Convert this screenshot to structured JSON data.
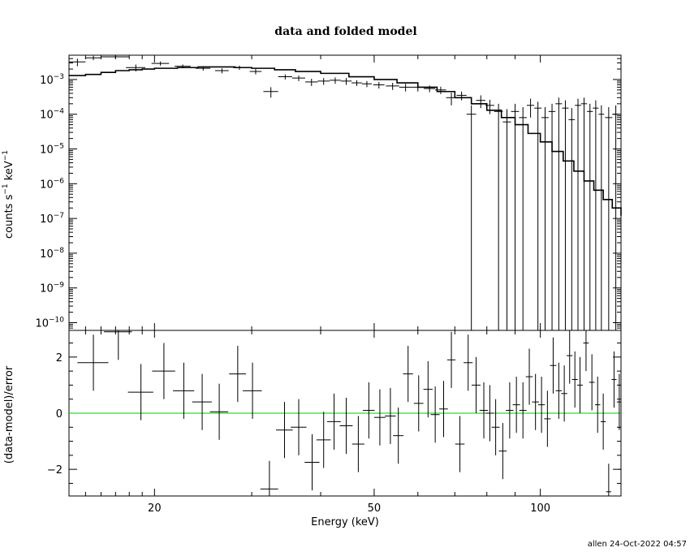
{
  "title": "data and folded model",
  "stamp": "allen 24-Oct-2022 04:57",
  "chart_data": [
    {
      "type": "scatter",
      "panel": "top",
      "title": "data and folded model",
      "xlabel": "Energy (keV)",
      "ylabel": "counts s^-1 keV^-1",
      "ylabel_parts": [
        "counts s",
        "−1",
        " keV",
        "−1"
      ],
      "xscale": "log",
      "yscale": "log",
      "xlim": [
        14,
        140
      ],
      "ylim": [
        6e-11,
        0.005
      ],
      "y_ticks": [
        {
          "value": 0.001,
          "base": "10",
          "exp": "−3"
        },
        {
          "value": 0.0001,
          "base": "10",
          "exp": "−4"
        },
        {
          "value": 1e-05,
          "base": "10",
          "exp": "−5"
        },
        {
          "value": 1e-06,
          "base": "10",
          "exp": "−6"
        },
        {
          "value": 1e-07,
          "base": "10",
          "exp": "−7"
        },
        {
          "value": 1e-08,
          "base": "10",
          "exp": "−8"
        },
        {
          "value": 1e-09,
          "base": "10",
          "exp": "−9"
        },
        {
          "value": 1e-10,
          "base": "10",
          "exp": "−10"
        }
      ],
      "grid": false,
      "series": [
        {
          "role": "data",
          "points": [
            [
              14.5,
              0.0032
            ],
            [
              15.5,
              0.0042
            ],
            [
              17.0,
              0.0045
            ],
            [
              18.5,
              0.0022
            ],
            [
              20.5,
              0.0029
            ],
            [
              22.5,
              0.0024
            ],
            [
              24.5,
              0.0021
            ],
            [
              26.5,
              0.0018
            ],
            [
              28.5,
              0.0022
            ],
            [
              30.5,
              0.0017
            ],
            [
              32.5,
              0.00045
            ],
            [
              34.5,
              0.0012
            ],
            [
              36.5,
              0.0011
            ],
            [
              38.5,
              0.00085
            ],
            [
              40.5,
              0.0009
            ],
            [
              42.5,
              0.00095
            ],
            [
              44.5,
              0.0009
            ],
            [
              46.5,
              0.0008
            ],
            [
              48.5,
              0.00075
            ],
            [
              51,
              0.0007
            ],
            [
              54,
              0.00065
            ],
            [
              57,
              0.0006
            ],
            [
              60,
              0.0006
            ],
            [
              63,
              0.00055
            ],
            [
              66,
              0.0005
            ],
            [
              69,
              0.0003
            ],
            [
              72,
              0.00035
            ],
            [
              75,
              0.0001
            ],
            [
              78,
              0.00025
            ],
            [
              81,
              0.00018
            ],
            [
              84,
              0.00012
            ],
            [
              87,
              6e-05
            ],
            [
              90,
              0.00012
            ],
            [
              93,
              8e-05
            ],
            [
              96,
              0.00018
            ],
            [
              99,
              0.00015
            ],
            [
              102,
              8e-05
            ],
            [
              105,
              0.00012
            ],
            [
              108,
              0.0002
            ],
            [
              111,
              0.00015
            ],
            [
              114,
              7e-05
            ],
            [
              117,
              0.00018
            ],
            [
              120,
              0.0002
            ],
            [
              123,
              0.00012
            ],
            [
              126,
              0.00015
            ],
            [
              129,
              0.0001
            ],
            [
              133,
              8e-05
            ],
            [
              137,
              0.0001
            ]
          ],
          "xerr_half": [
            0.5,
            0.5,
            1.0,
            0.75,
            0.75,
            0.75,
            0.75,
            0.75,
            0.75,
            0.75,
            1.0,
            1.0,
            1.0,
            1.0,
            1.0,
            1.0,
            1.0,
            1.0,
            1.0,
            1.2,
            1.5,
            1.5,
            1.5,
            1.5,
            1.5,
            1.5,
            1.5,
            1.5,
            1.5,
            1.5,
            1.5,
            1.5,
            1.5,
            1.5,
            1.5,
            1.5,
            1.5,
            1.5,
            1.5,
            1.5,
            1.5,
            1.5,
            1.5,
            1.5,
            1.5,
            1.5,
            2.0,
            2.0
          ],
          "yerr_low": [
            0.0008,
            0.0006,
            0.0005,
            0.0005,
            0.0004,
            0.0003,
            0.0003,
            0.0003,
            0.0003,
            0.0003,
            0.00015,
            0.0002,
            0.0002,
            0.0002,
            0.0002,
            0.0002,
            0.0002,
            0.00015,
            0.00015,
            0.00015,
            0.00015,
            0.00015,
            0.00015,
            0.00012,
            0.00012,
            0.00012,
            0.0001,
            "floor",
            0.0001,
            8e-05,
            "floor",
            "floor",
            "floor",
            "floor",
            0.0001,
            "floor",
            "floor",
            "floor",
            "floor",
            "floor",
            "floor",
            "floor",
            "floor",
            "floor",
            "floor",
            "floor",
            "floor",
            "floor"
          ],
          "yerr_high": [
            0.0008,
            0.0006,
            0.0005,
            0.0005,
            0.0004,
            0.0003,
            0.0003,
            0.0003,
            0.0003,
            0.0003,
            0.00015,
            0.0002,
            0.0002,
            0.0002,
            0.0002,
            0.0002,
            0.0002,
            0.00015,
            0.00015,
            0.00015,
            0.00015,
            0.00015,
            0.00015,
            0.00012,
            0.00012,
            0.00012,
            0.0001,
            8e-05,
            0.0001,
            8e-05,
            8e-05,
            8e-05,
            8e-05,
            8e-05,
            0.0001,
            8e-05,
            8e-05,
            8e-05,
            0.0001,
            0.0001,
            8e-05,
            0.0001,
            0.0001,
            8e-05,
            0.0001,
            8e-05,
            8e-05,
            8e-05
          ]
        },
        {
          "role": "model",
          "style": "step",
          "points": [
            [
              14,
              0.0013
            ],
            [
              15,
              0.0014
            ],
            [
              16,
              0.0016
            ],
            [
              17,
              0.0018
            ],
            [
              18,
              0.0019
            ],
            [
              19,
              0.002
            ],
            [
              20,
              0.0021
            ],
            [
              22,
              0.0022
            ],
            [
              24,
              0.0023
            ],
            [
              26,
              0.0023
            ],
            [
              28,
              0.0022
            ],
            [
              30,
              0.0021
            ],
            [
              33,
              0.0019
            ],
            [
              36,
              0.0017
            ],
            [
              40,
              0.0015
            ],
            [
              45,
              0.0012
            ],
            [
              50,
              0.001
            ],
            [
              55,
              0.0008
            ],
            [
              60,
              0.0006
            ],
            [
              65,
              0.00045
            ],
            [
              70,
              0.0003
            ],
            [
              75,
              0.0002
            ],
            [
              80,
              0.00013
            ],
            [
              85,
              8e-05
            ],
            [
              90,
              5e-05
            ],
            [
              95,
              2.8e-05
            ],
            [
              100,
              1.6e-05
            ],
            [
              105,
              8.5e-06
            ],
            [
              110,
              4.5e-06
            ],
            [
              115,
              2.3e-06
            ],
            [
              120,
              1.2e-06
            ],
            [
              125,
              6.5e-07
            ],
            [
              130,
              3.5e-07
            ],
            [
              135,
              2e-07
            ],
            [
              140,
              1.2e-07
            ]
          ]
        }
      ]
    },
    {
      "type": "scatter",
      "panel": "bottom",
      "xlabel": "Energy (keV)",
      "ylabel": "(data-model)/error",
      "xscale": "log",
      "xlim": [
        14,
        140
      ],
      "ylim": [
        -2.95,
        2.95
      ],
      "y_ticks": [
        {
          "value": 2,
          "label": "2"
        },
        {
          "value": 0,
          "label": "0"
        },
        {
          "value": -2,
          "label": "−2"
        }
      ],
      "x_ticks": [
        {
          "value": 20,
          "label": "20"
        },
        {
          "value": 50,
          "label": "50"
        },
        {
          "value": 100,
          "label": "100"
        }
      ],
      "reference_line": {
        "y": 0,
        "color": "#00cc00"
      },
      "grid": false,
      "series": [
        {
          "role": "residuals",
          "points": [
            [
              15.5,
              1.8
            ],
            [
              17.2,
              2.9
            ],
            [
              18.9,
              0.75
            ],
            [
              20.8,
              1.5
            ],
            [
              22.6,
              0.8
            ],
            [
              24.4,
              0.4
            ],
            [
              26.2,
              0.05
            ],
            [
              28.3,
              1.4
            ],
            [
              30.1,
              0.8
            ],
            [
              32.3,
              -2.7
            ],
            [
              34.4,
              -0.6
            ],
            [
              36.5,
              -0.5
            ],
            [
              38.6,
              -1.75
            ],
            [
              40.5,
              -0.95
            ],
            [
              42.3,
              -0.3
            ],
            [
              44.5,
              -0.45
            ],
            [
              46.8,
              -1.1
            ],
            [
              48.9,
              0.1
            ],
            [
              51.2,
              -0.15
            ],
            [
              53.5,
              -0.1
            ],
            [
              55.3,
              -0.8
            ],
            [
              57.6,
              1.4
            ],
            [
              60.2,
              0.35
            ],
            [
              62.6,
              0.85
            ],
            [
              64.5,
              -0.05
            ],
            [
              66.8,
              0.15
            ],
            [
              69,
              1.9
            ],
            [
              71.5,
              -1.1
            ],
            [
              74,
              1.8
            ],
            [
              76.5,
              1.0
            ],
            [
              79,
              0.1
            ],
            [
              81,
              0.0
            ],
            [
              83,
              -0.5
            ],
            [
              85.5,
              -1.35
            ],
            [
              88,
              0.1
            ],
            [
              90.5,
              0.3
            ],
            [
              93,
              0.1
            ],
            [
              95.5,
              1.3
            ],
            [
              98,
              0.4
            ],
            [
              100.5,
              0.3
            ],
            [
              103,
              -0.2
            ],
            [
              105.5,
              1.7
            ],
            [
              108,
              0.8
            ],
            [
              110.5,
              0.7
            ],
            [
              113,
              2.05
            ],
            [
              115.5,
              1.2
            ],
            [
              118,
              1.0
            ],
            [
              121,
              2.5
            ],
            [
              124,
              1.1
            ],
            [
              127,
              0.3
            ],
            [
              130,
              -0.3
            ],
            [
              133,
              -2.8
            ],
            [
              136,
              1.2
            ],
            [
              139,
              0.4
            ],
            [
              140,
              -2.0
            ]
          ],
          "yerr": [
            1.0,
            1.0,
            1.0,
            1.0,
            1.0,
            1.0,
            1.0,
            1.0,
            1.0,
            1.0,
            1.0,
            1.0,
            1.0,
            1.0,
            1.0,
            1.0,
            1.0,
            1.0,
            1.0,
            1.0,
            1.0,
            1.0,
            1.0,
            1.0,
            1.0,
            1.0,
            1.0,
            1.0,
            1.0,
            1.0,
            1.0,
            1.0,
            1.0,
            1.0,
            1.0,
            1.0,
            1.0,
            1.0,
            1.0,
            1.0,
            1.0,
            1.0,
            1.0,
            1.0,
            1.0,
            1.0,
            1.0,
            1.0,
            1.0,
            1.0,
            1.0,
            1.0,
            1.0,
            1.0,
            1.0
          ]
        }
      ]
    }
  ]
}
